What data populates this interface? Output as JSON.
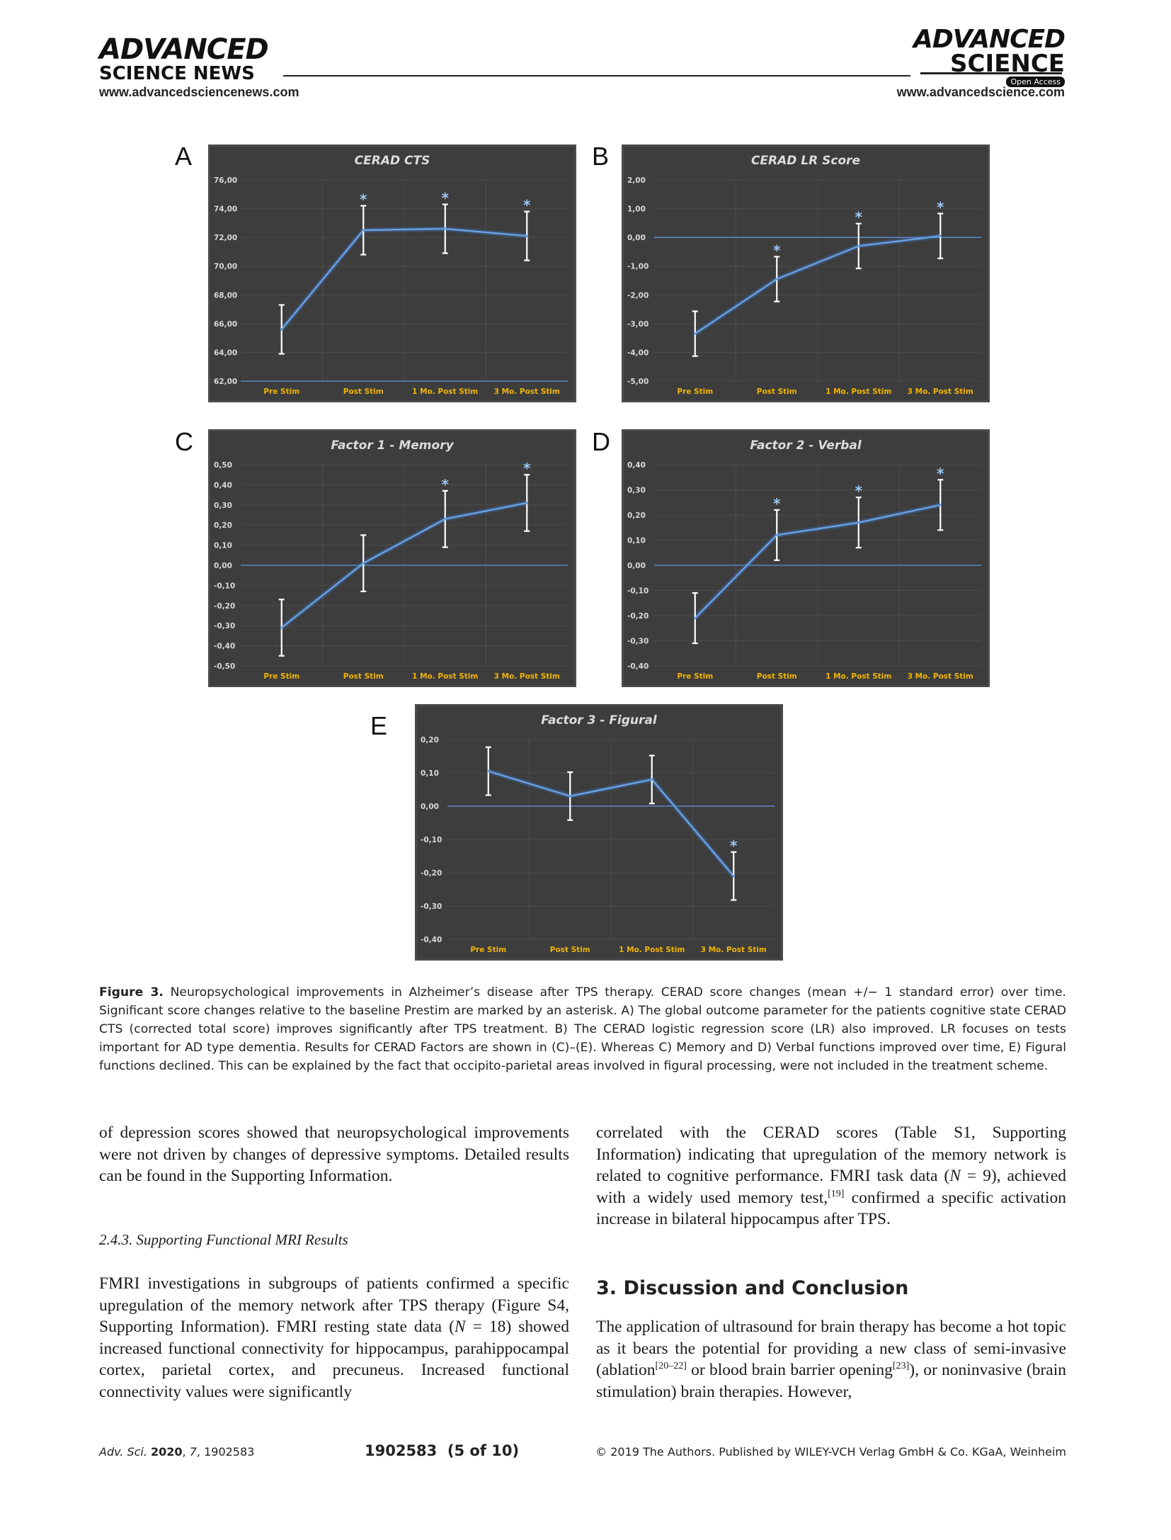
{
  "header": {
    "left_logo_line1": "ADVANCED",
    "left_logo_line2": "SCIENCE NEWS",
    "left_url": "www.advancedsciencenews.com",
    "right_logo_line1": "ADVANCED",
    "right_logo_line2": "SCIENCE",
    "right_open_access": "Open Access",
    "right_url": "www.advancedscience.com"
  },
  "panels": {
    "A": "A",
    "B": "B",
    "C": "C",
    "D": "D",
    "E": "E"
  },
  "chart_data": [
    {
      "id": "A",
      "type": "line",
      "title": "CERAD CTS",
      "categories": [
        "Pre Stim",
        "Post Stim",
        "1 Mo. Post Stim",
        "3 Mo. Post Stim"
      ],
      "values": [
        65.6,
        72.5,
        72.6,
        72.1
      ],
      "error": [
        1.7,
        1.7,
        1.7,
        1.7
      ],
      "significant": [
        false,
        true,
        true,
        true
      ],
      "ylim": [
        62,
        76
      ],
      "yticks": [
        "62,00",
        "64,00",
        "66,00",
        "68,00",
        "70,00",
        "72,00",
        "74,00",
        "76,00"
      ],
      "yticks_values": [
        62,
        64,
        66,
        68,
        70,
        72,
        74,
        76
      ],
      "baseline": 62
    },
    {
      "id": "B",
      "type": "line",
      "title": "CERAD LR Score",
      "categories": [
        "Pre Stim",
        "Post Stim",
        "1 Mo. Post Stim",
        "3 Mo. Post Stim"
      ],
      "values": [
        -3.35,
        -1.45,
        -0.3,
        0.05
      ],
      "error": [
        0.78,
        0.78,
        0.78,
        0.78
      ],
      "significant": [
        false,
        true,
        true,
        true
      ],
      "ylim": [
        -5,
        2
      ],
      "yticks": [
        "-5,00",
        "-4,00",
        "-3,00",
        "-2,00",
        "-1,00",
        "0,00",
        "1,00",
        "2,00"
      ],
      "yticks_values": [
        -5,
        -4,
        -3,
        -2,
        -1,
        0,
        1,
        2
      ],
      "baseline": 0
    },
    {
      "id": "C",
      "type": "line",
      "title": "Factor 1 - Memory",
      "categories": [
        "Pre Stim",
        "Post Stim",
        "1 Mo. Post Stim",
        "3 Mo. Post Stim"
      ],
      "values": [
        -0.31,
        0.01,
        0.23,
        0.31
      ],
      "error": [
        0.14,
        0.14,
        0.14,
        0.14
      ],
      "significant": [
        false,
        false,
        true,
        true
      ],
      "ylim": [
        -0.5,
        0.5
      ],
      "yticks": [
        "-0,50",
        "-0,40",
        "-0,30",
        "-0,20",
        "-0,10",
        "0,00",
        "0,10",
        "0,20",
        "0,30",
        "0,40",
        "0,50"
      ],
      "yticks_values": [
        -0.5,
        -0.4,
        -0.3,
        -0.2,
        -0.1,
        0,
        0.1,
        0.2,
        0.3,
        0.4,
        0.5
      ],
      "baseline": 0
    },
    {
      "id": "D",
      "type": "line",
      "title": "Factor 2 - Verbal",
      "categories": [
        "Pre Stim",
        "Post Stim",
        "1 Mo. Post Stim",
        "3 Mo. Post Stim"
      ],
      "values": [
        -0.21,
        0.12,
        0.17,
        0.24
      ],
      "error": [
        0.1,
        0.1,
        0.1,
        0.1
      ],
      "significant": [
        false,
        true,
        true,
        true
      ],
      "ylim": [
        -0.4,
        0.4
      ],
      "yticks": [
        "-0,40",
        "-0,30",
        "-0,20",
        "-0,10",
        "0,00",
        "0,10",
        "0,20",
        "0,30",
        "0,40"
      ],
      "yticks_values": [
        -0.4,
        -0.3,
        -0.2,
        -0.1,
        0,
        0.1,
        0.2,
        0.3,
        0.4
      ],
      "baseline": 0
    },
    {
      "id": "E",
      "type": "line",
      "title": "Factor 3 - Figural",
      "categories": [
        "Pre Stim",
        "Post Stim",
        "1 Mo. Post Stim",
        "3 Mo. Post Stim"
      ],
      "values": [
        0.105,
        0.03,
        0.08,
        -0.21
      ],
      "error": [
        0.072,
        0.072,
        0.072,
        0.072
      ],
      "significant": [
        false,
        false,
        false,
        true
      ],
      "ylim": [
        -0.4,
        0.2
      ],
      "yticks": [
        "-0,40",
        "-0,30",
        "-0,20",
        "-0,10",
        "0,00",
        "0,10",
        "0,20"
      ],
      "yticks_values": [
        -0.4,
        -0.3,
        -0.2,
        -0.1,
        0,
        0.1,
        0.2
      ],
      "baseline": 0
    }
  ],
  "caption": {
    "label": "Figure 3.",
    "text": "Neuropsychological improvements in Alzheimer’s disease after TPS therapy. CERAD score changes (mean +/− 1 standard error) over time. Significant score changes relative to the baseline Prestim are marked by an asterisk. A) The global outcome parameter for the patients cognitive state CERAD CTS (corrected total score) improves significantly after TPS treatment. B) The CERAD logistic regression score (LR) also improved. LR focuses on tests important for AD type dementia. Results for CERAD Factors are shown in (C)–(E). Whereas C) Memory and D) Verbal functions improved over time, E) Figural functions declined. This can be explained by the fact that occipito-parietal areas involved in figural processing, were not included in the treatment scheme."
  },
  "body": {
    "left_p1": "of depression scores showed that neuropsychological improvements were not driven by changes of depressive symptoms. Detailed results can be found in the Supporting Information.",
    "left_subheading": "2.4.3. Supporting Functional MRI Results",
    "left_p2a": "FMRI investigations in subgroups of patients confirmed a specific upregulation of the memory network after TPS therapy (Figure S4, Supporting Information). FMRI resting state data (",
    "left_p2_N": "N",
    "left_p2b": " = 18) showed increased functional connectivity for hippocampus, parahippocampal cortex, parietal cortex, and precuneus. Increased functional connectivity values were significantly",
    "right_p1a": "correlated with the CERAD scores (Table S1, Supporting Information) indicating that upregulation of the memory network is related to cognitive performance. FMRI task data (",
    "right_p1_N": "N",
    "right_p1b": " = 9), achieved with a widely used memory test,",
    "right_p1_ref": "[19]",
    "right_p1c": " confirmed a specific activation increase in bilateral hippocampus after TPS.",
    "right_heading": "3. Discussion and Conclusion",
    "right_p2a": "The application of ultrasound for brain therapy has become a hot topic as it bears the potential for providing a new class of semi-invasive (ablation",
    "right_p2_ref1": "[20–22]",
    "right_p2b": " or blood brain barrier opening",
    "right_p2_ref2": "[23]",
    "right_p2c": "), or noninvasive (brain stimulation) brain therapies. However,"
  },
  "footer": {
    "left_journal": "Adv. Sci.",
    "left_year": "2020",
    "left_volume": "7",
    "left_id": ", 1902583",
    "center": "1902583  (5 of 10)",
    "right": "© 2019 The Authors. Published by WILEY-VCH Verlag GmbH & Co. KGaA, Weinheim"
  },
  "colors": {
    "chart_bg": "#3d3d3d",
    "line": "#6aa1e3",
    "tick_label": "#d9d9d9",
    "category_label": "#f0b400",
    "asterisk": "#9ec8f5",
    "grid": "#4c4c4c"
  }
}
